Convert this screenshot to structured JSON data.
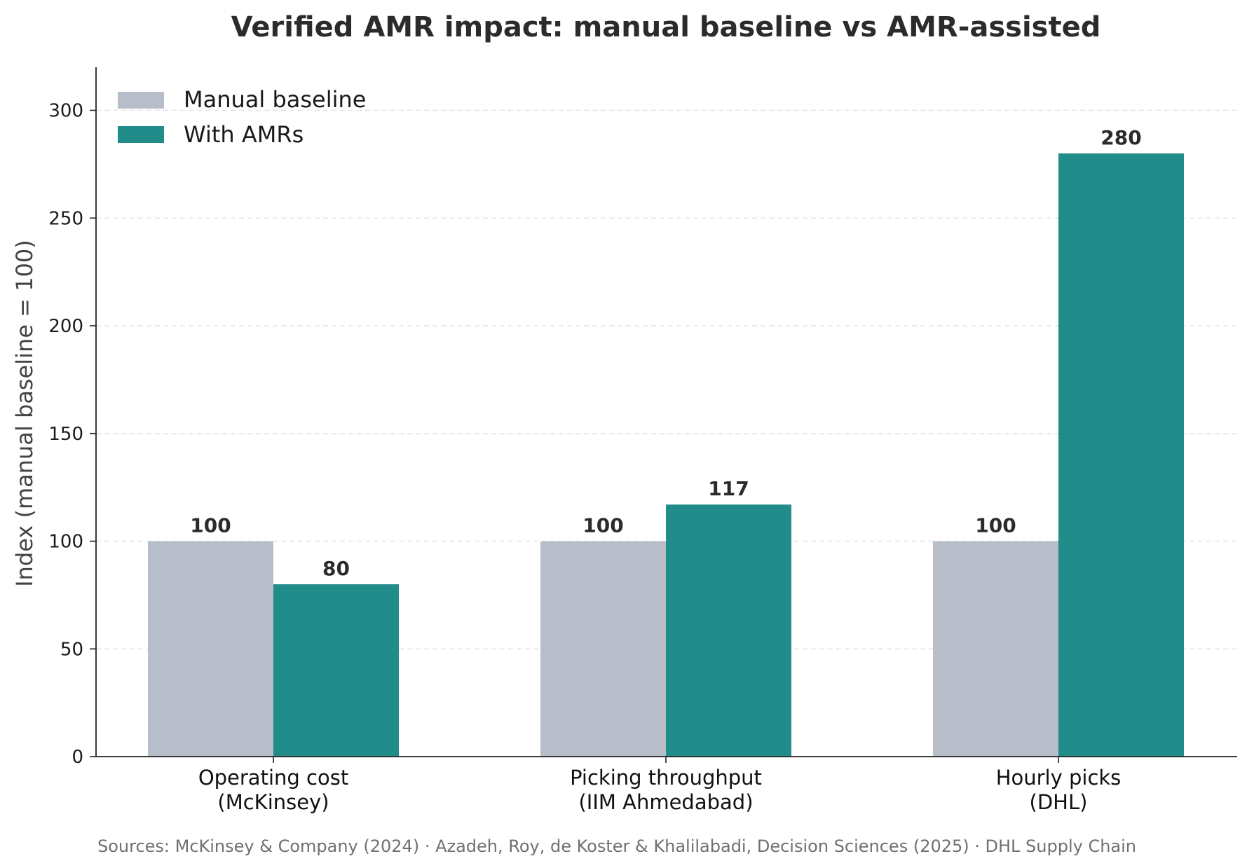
{
  "chart_data": {
    "type": "bar",
    "title": "Verified AMR impact: manual baseline vs AMR-assisted",
    "ylabel": "Index (manual baseline = 100)",
    "xlabel": "",
    "ylim": [
      0,
      320
    ],
    "yticks": [
      0,
      50,
      100,
      150,
      200,
      250,
      300
    ],
    "grid": "y-dashed",
    "legend_position": "top-left",
    "categories": [
      [
        "Operating cost",
        "(McKinsey)"
      ],
      [
        "Picking throughput",
        "(IIM Ahmedabad)"
      ],
      [
        "Hourly picks",
        "(DHL)"
      ]
    ],
    "series": [
      {
        "name": "Manual baseline",
        "color": "#b8bec9",
        "values": [
          100,
          100,
          100
        ]
      },
      {
        "name": "With AMRs",
        "color": "#218c8a",
        "values": [
          80,
          117,
          280
        ]
      }
    ],
    "source_note": "Sources: McKinsey & Company (2024) · Azadeh, Roy, de Koster & Khalilabadi, Decision Sciences (2025) · DHL Supply Chain"
  }
}
